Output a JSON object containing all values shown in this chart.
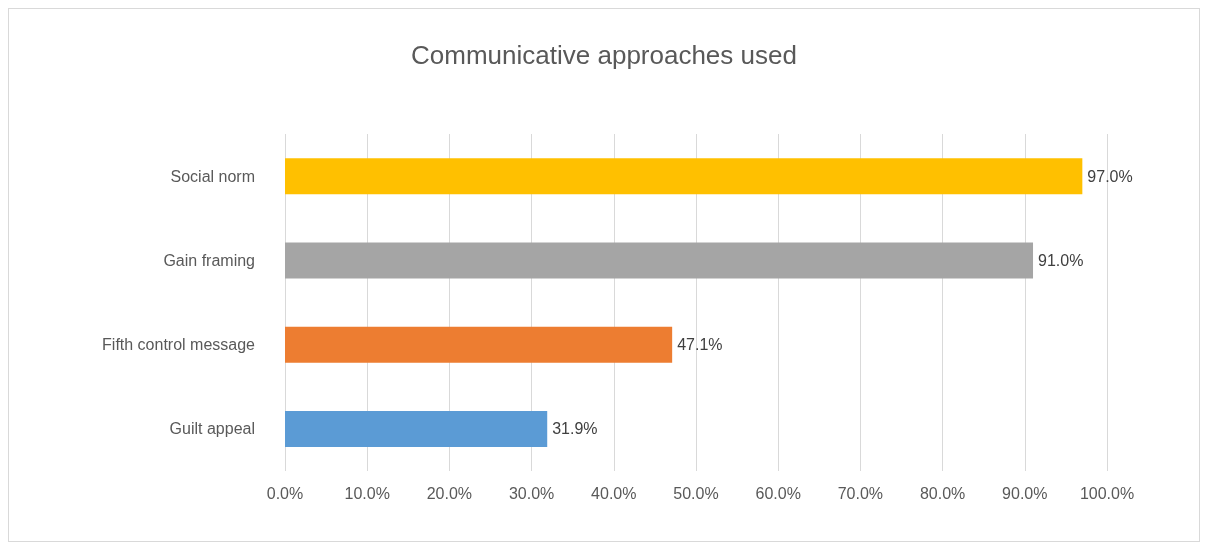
{
  "chart_data": {
    "type": "bar",
    "orientation": "horizontal",
    "title": "Communicative approaches used",
    "categories": [
      "Social norm",
      "Gain framing",
      "Fifth control message",
      "Guilt appeal"
    ],
    "values": [
      97.0,
      91.0,
      47.1,
      31.9
    ],
    "colors": [
      "#ffc000",
      "#a5a5a5",
      "#ed7d31",
      "#5b9bd5"
    ],
    "value_labels": [
      "97.0%",
      "91.0%",
      "47.1%",
      "31.9%"
    ],
    "xlim": [
      0,
      100
    ],
    "xticks": [
      {
        "value": 0,
        "label": "0.0%"
      },
      {
        "value": 10,
        "label": "10.0%"
      },
      {
        "value": 20,
        "label": "20.0%"
      },
      {
        "value": 30,
        "label": "30.0%"
      },
      {
        "value": 40,
        "label": "40.0%"
      },
      {
        "value": 50,
        "label": "50.0%"
      },
      {
        "value": 60,
        "label": "60.0%"
      },
      {
        "value": 70,
        "label": "70.0%"
      },
      {
        "value": 80,
        "label": "80.0%"
      },
      {
        "value": 90,
        "label": "90.0%"
      },
      {
        "value": 100,
        "label": "100.0%"
      }
    ],
    "grid": "x"
  }
}
